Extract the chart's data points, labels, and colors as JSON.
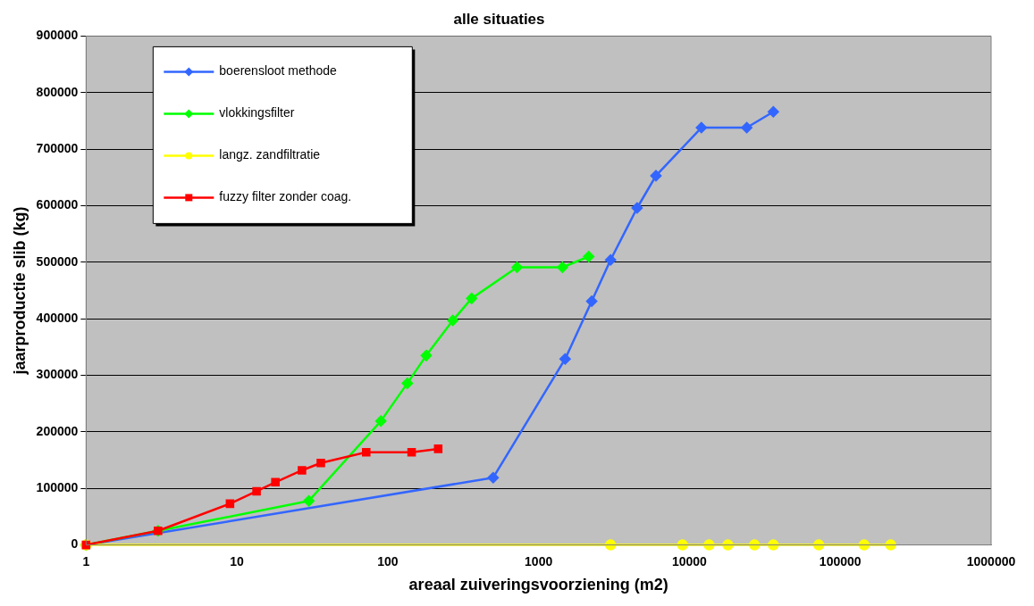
{
  "chart_data": {
    "type": "line",
    "title": "alle situaties",
    "xlabel": "areaal zuiveringsvoorziening (m2)",
    "ylabel": "jaarproductie slib (kg)",
    "log": "x",
    "xlim": [
      1,
      1000000
    ],
    "xticks": [
      1,
      10,
      100,
      1000,
      10000,
      100000,
      1000000
    ],
    "ylim": [
      0,
      900000
    ],
    "yticks": [
      0,
      100000,
      200000,
      300000,
      400000,
      500000,
      600000,
      700000,
      800000,
      900000
    ],
    "grid": "y",
    "legend": "top left",
    "series": [
      {
        "name": "boerensloot methode",
        "color": "#3366ff",
        "marker": "diamond",
        "x": [
          1,
          500,
          1500,
          2250,
          3000,
          4500,
          6000,
          12000,
          24000,
          36000
        ],
        "values": [
          0,
          119000,
          329000,
          431000,
          504000,
          596000,
          653000,
          738000,
          738000,
          766000
        ]
      },
      {
        "name": "vlokkingsfilter",
        "color": "#00ff00",
        "marker": "diamond",
        "x": [
          1,
          3,
          30,
          90,
          135,
          180,
          270,
          360,
          720,
          1440,
          2150
        ],
        "values": [
          0,
          25000,
          78000,
          219000,
          286000,
          335000,
          397000,
          436000,
          491000,
          491000,
          510000
        ]
      },
      {
        "name": "langz. zandfiltratie",
        "color": "#ffff00",
        "marker": "circle",
        "x": [
          1,
          3000,
          9000,
          13500,
          18000,
          27000,
          36000,
          72000,
          144000,
          216000
        ],
        "values": [
          0,
          0,
          0,
          0,
          0,
          0,
          0,
          0,
          0,
          0
        ]
      },
      {
        "name": "fuzzy filter zonder coag.",
        "color": "#ff0000",
        "marker": "square",
        "x": [
          1,
          3,
          9,
          13.5,
          18,
          27,
          36,
          72,
          144,
          216
        ],
        "values": [
          0,
          25000,
          73000,
          95000,
          111000,
          132000,
          145000,
          164000,
          164000,
          170000
        ]
      }
    ]
  }
}
